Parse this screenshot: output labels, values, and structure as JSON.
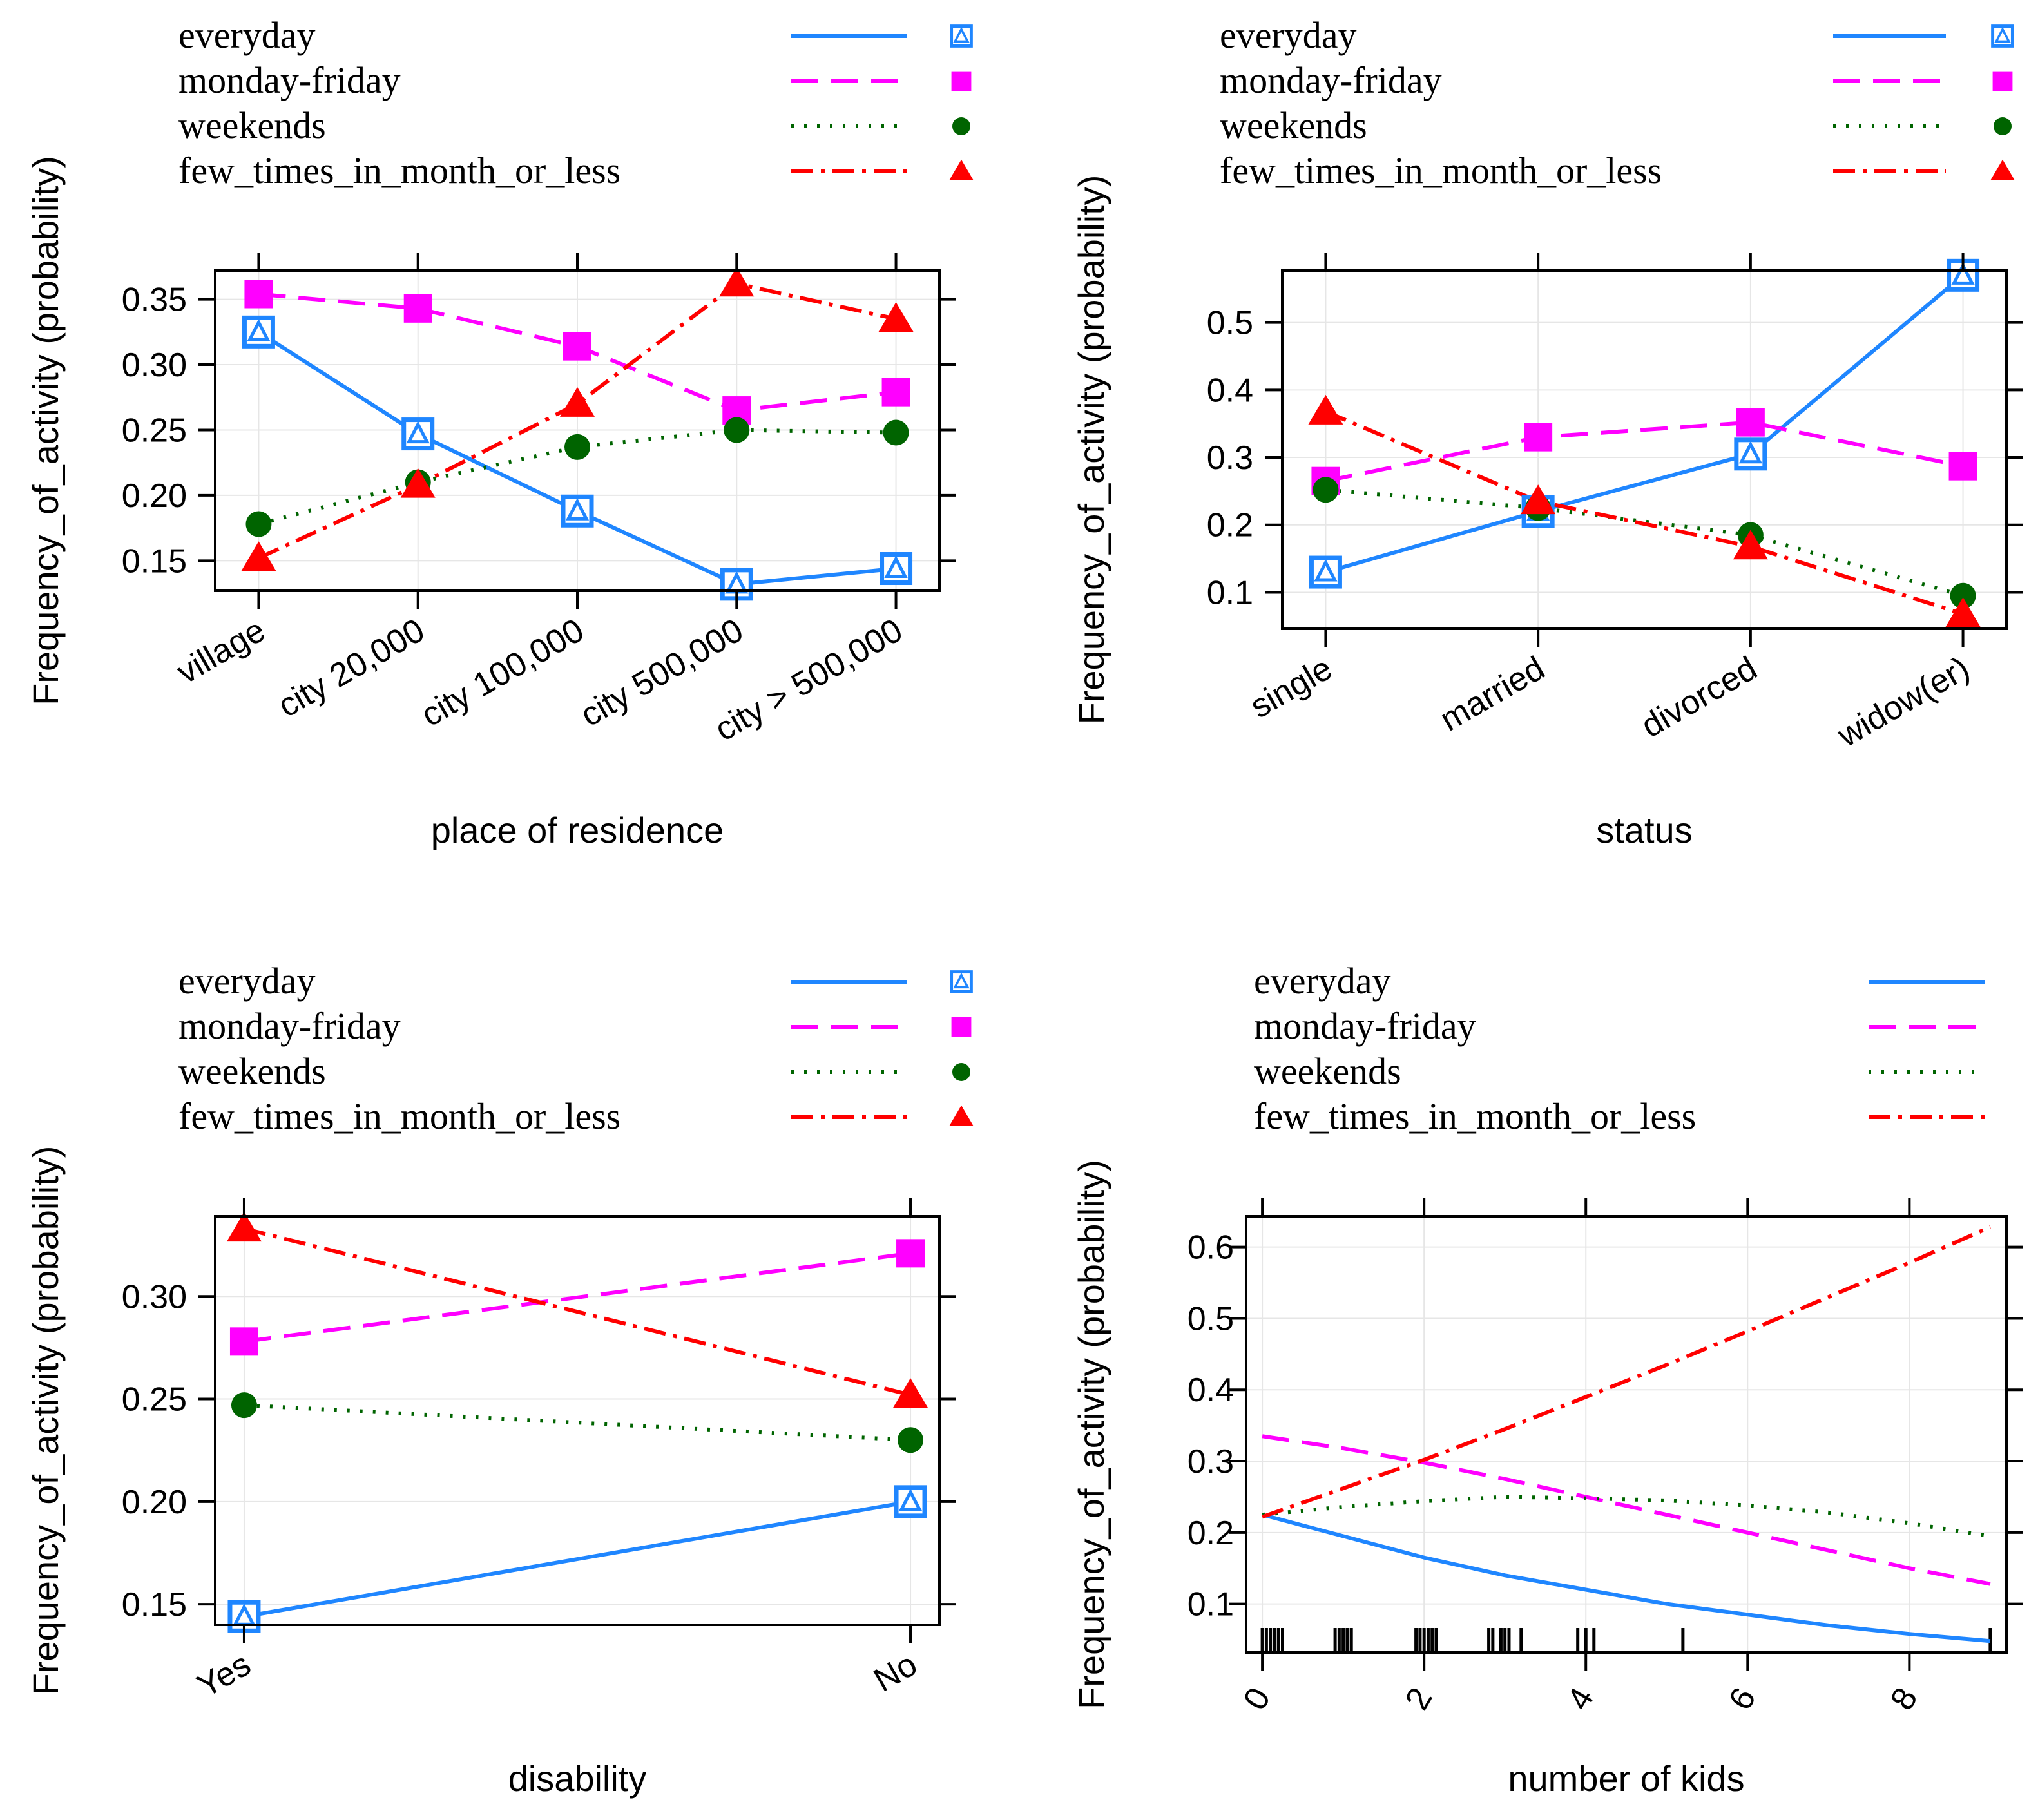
{
  "chart_data": [
    {
      "id": "residence",
      "type": "line",
      "xlabel": "place of residence",
      "ylabel": "Frequency_of_activity (probability)",
      "categories": [
        "village",
        "city 20,000",
        "city 100,000",
        "city 500,000",
        "city > 500,000"
      ],
      "ylim": [
        0.127,
        0.372
      ],
      "yticks": [
        "0.15",
        "0.20",
        "0.25",
        "0.30",
        "0.35"
      ],
      "ytick_values": [
        0.15,
        0.2,
        0.25,
        0.3,
        0.35
      ],
      "legend": [
        "everyday",
        "monday-friday",
        "weekends",
        "few_times_in_month_or_less"
      ],
      "series": [
        {
          "name": "everyday",
          "values": [
            0.325,
            0.247,
            0.188,
            0.132,
            0.144
          ]
        },
        {
          "name": "monday-friday",
          "values": [
            0.354,
            0.343,
            0.314,
            0.265,
            0.279
          ]
        },
        {
          "name": "weekends",
          "values": [
            0.178,
            0.21,
            0.237,
            0.25,
            0.248
          ]
        },
        {
          "name": "few_times_in_month_or_less",
          "values": [
            0.152,
            0.208,
            0.27,
            0.362,
            0.335
          ]
        }
      ]
    },
    {
      "id": "status",
      "type": "line",
      "xlabel": "status",
      "ylabel": "Frequency_of_activity (probability)",
      "categories": [
        "single",
        "married",
        "divorced",
        "widow(er)"
      ],
      "ylim": [
        0.046,
        0.577
      ],
      "yticks": [
        "0.1",
        "0.2",
        "0.3",
        "0.4",
        "0.5"
      ],
      "ytick_values": [
        0.1,
        0.2,
        0.3,
        0.4,
        0.5
      ],
      "legend": [
        "everyday",
        "monday-friday",
        "weekends",
        "few_times_in_month_or_less"
      ],
      "series": [
        {
          "name": "everyday",
          "values": [
            0.13,
            0.22,
            0.305,
            0.57
          ]
        },
        {
          "name": "monday-friday",
          "values": [
            0.265,
            0.33,
            0.352,
            0.287
          ]
        },
        {
          "name": "weekends",
          "values": [
            0.252,
            0.225,
            0.185,
            0.095
          ]
        },
        {
          "name": "few_times_in_month_or_less",
          "values": [
            0.368,
            0.235,
            0.168,
            0.068
          ]
        }
      ]
    },
    {
      "id": "disability",
      "type": "line",
      "xlabel": "disability",
      "ylabel": "Frequency_of_activity (probability)",
      "categories": [
        "Yes",
        "No"
      ],
      "ylim": [
        0.14,
        0.339
      ],
      "yticks": [
        "0.15",
        "0.20",
        "0.25",
        "0.30"
      ],
      "ytick_values": [
        0.15,
        0.2,
        0.25,
        0.3
      ],
      "legend": [
        "everyday",
        "monday-friday",
        "weekends",
        "few_times_in_month_or_less"
      ],
      "series": [
        {
          "name": "everyday",
          "values": [
            0.144,
            0.2
          ]
        },
        {
          "name": "monday-friday",
          "values": [
            0.278,
            0.321
          ]
        },
        {
          "name": "weekends",
          "values": [
            0.247,
            0.23
          ]
        },
        {
          "name": "few_times_in_month_or_less",
          "values": [
            0.333,
            0.252
          ]
        }
      ]
    },
    {
      "id": "kids",
      "type": "line",
      "xlabel": "number of kids",
      "ylabel": "Frequency_of_activity (probability)",
      "xlim": [
        -0.2,
        9.2
      ],
      "xticks": [
        "0",
        "2",
        "4",
        "6",
        "8"
      ],
      "xtick_values": [
        0,
        2,
        4,
        6,
        8
      ],
      "ylim": [
        0.032,
        0.643
      ],
      "yticks": [
        "0.1",
        "0.2",
        "0.3",
        "0.4",
        "0.5",
        "0.6"
      ],
      "ytick_values": [
        0.1,
        0.2,
        0.3,
        0.4,
        0.5,
        0.6
      ],
      "legend": [
        "everyday",
        "monday-friday",
        "weekends",
        "few_times_in_month_or_less"
      ],
      "x": [
        0,
        1,
        2,
        3,
        4,
        5,
        6,
        7,
        8,
        9
      ],
      "series": [
        {
          "name": "everyday",
          "values": [
            0.225,
            0.195,
            0.165,
            0.14,
            0.12,
            0.1,
            0.085,
            0.07,
            0.058,
            0.048
          ]
        },
        {
          "name": "monday-friday",
          "values": [
            0.335,
            0.318,
            0.298,
            0.275,
            0.25,
            0.225,
            0.2,
            0.175,
            0.15,
            0.128
          ]
        },
        {
          "name": "weekends",
          "values": [
            0.225,
            0.236,
            0.244,
            0.25,
            0.248,
            0.245,
            0.238,
            0.228,
            0.213,
            0.195
          ]
        },
        {
          "name": "few_times_in_month_or_less",
          "values": [
            0.222,
            0.262,
            0.302,
            0.345,
            0.39,
            0.435,
            0.482,
            0.53,
            0.578,
            0.628
          ]
        }
      ],
      "rug": [
        0,
        0.05,
        0.1,
        0.15,
        0.2,
        0.25,
        0.9,
        0.95,
        1,
        1.05,
        1.1,
        1.9,
        1.95,
        2,
        2.05,
        2.1,
        2.15,
        2.8,
        2.85,
        2.95,
        3,
        3.05,
        3.2,
        3.9,
        4,
        4.1,
        5.2,
        9
      ]
    }
  ],
  "series_style": {
    "everyday": {
      "color": "#1f86ff",
      "marker": "square-triangle",
      "dash": ""
    },
    "monday-friday": {
      "color": "#ff00ff",
      "marker": "square",
      "dash": "42,20"
    },
    "weekends": {
      "color": "#006400",
      "marker": "circle",
      "dash": "4,16"
    },
    "few_times_in_month_or_less": {
      "color": "#ff0000",
      "marker": "triangle",
      "dash": "34,12,6,12"
    }
  }
}
